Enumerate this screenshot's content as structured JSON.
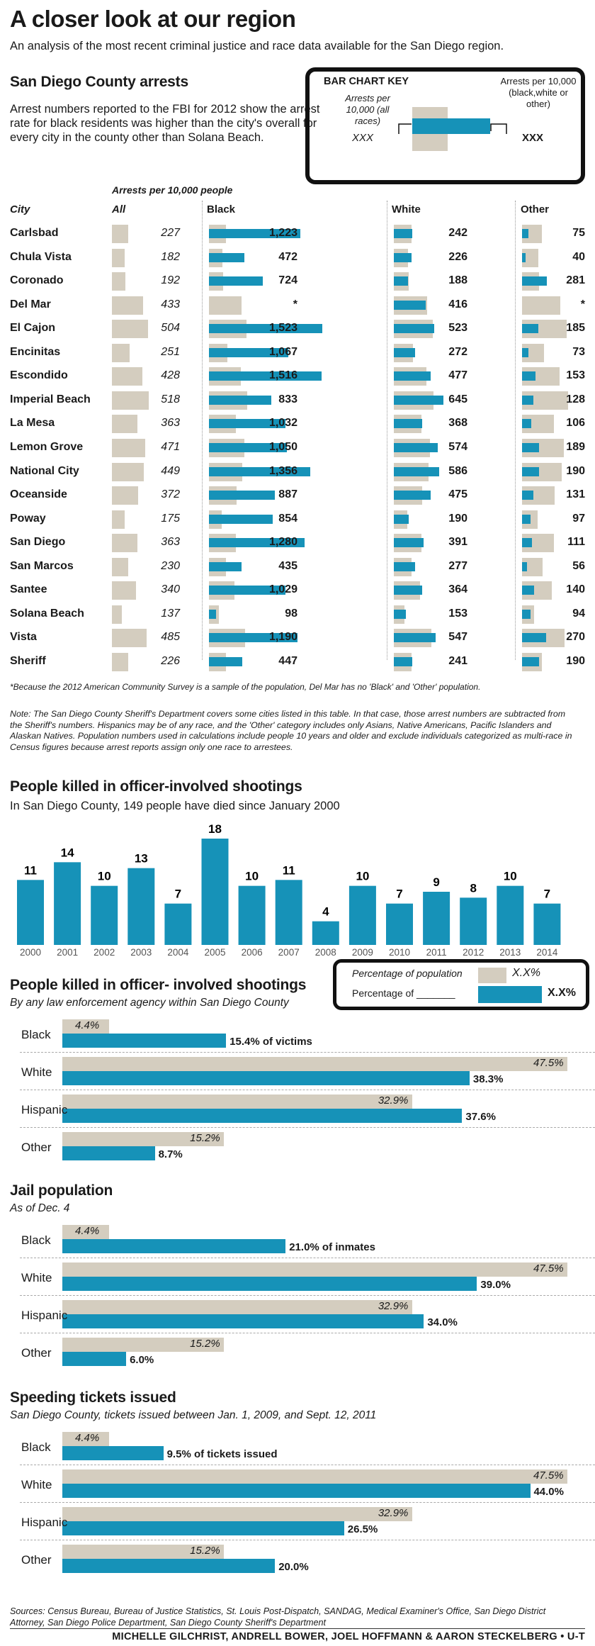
{
  "title": "A closer look at our region",
  "subtitle": "An analysis of the most recent criminal justice and race data available for the San Diego region.",
  "arrests": {
    "heading": "San Diego County arrests",
    "intro": "Arrest numbers reported to the FBI for 2012 show the arrest rate for black residents was higher than the city's overall for every city in the county other than Solana Beach.",
    "key": {
      "title": "BAR CHART KEY",
      "left": "Arrests per 10,000 (all races)",
      "left_val": "XXX",
      "right": "Arrests per 10,000 (black,white or other)",
      "right_val": "XXX"
    },
    "unit_note": "Arrests per 10,000 people",
    "columns": {
      "city": "City",
      "all": "All",
      "black": "Black",
      "white": "White",
      "other": "Other"
    },
    "colors": {
      "all_races": "#d4cdbf",
      "group": "#1692b8"
    },
    "rows": [
      {
        "city": "Carlsbad",
        "all": 227,
        "black": "1,223",
        "white": "242",
        "other": "75"
      },
      {
        "city": "Chula Vista",
        "all": 182,
        "black": "472",
        "white": "226",
        "other": "40"
      },
      {
        "city": "Coronado",
        "all": 192,
        "black": "724",
        "white": "188",
        "other": "281"
      },
      {
        "city": "Del Mar",
        "all": 433,
        "black": "*",
        "white": "416",
        "other": "*"
      },
      {
        "city": "El Cajon",
        "all": 504,
        "black": "1,523",
        "white": "523",
        "other": "185"
      },
      {
        "city": "Encinitas",
        "all": 251,
        "black": "1,067",
        "white": "272",
        "other": "73"
      },
      {
        "city": "Escondido",
        "all": 428,
        "black": "1,516",
        "white": "477",
        "other": "153"
      },
      {
        "city": "Imperial Beach",
        "all": 518,
        "black": "833",
        "white": "645",
        "other": "128"
      },
      {
        "city": "La Mesa",
        "all": 363,
        "black": "1,032",
        "white": "368",
        "other": "106"
      },
      {
        "city": "Lemon Grove",
        "all": 471,
        "black": "1,050",
        "white": "574",
        "other": "189"
      },
      {
        "city": "National City",
        "all": 449,
        "black": "1,356",
        "white": "586",
        "other": "190"
      },
      {
        "city": "Oceanside",
        "all": 372,
        "black": "887",
        "white": "475",
        "other": "131"
      },
      {
        "city": "Poway",
        "all": 175,
        "black": "854",
        "white": "190",
        "other": "97"
      },
      {
        "city": "San Diego",
        "all": 363,
        "black": "1,280",
        "white": "391",
        "other": "111"
      },
      {
        "city": "San Marcos",
        "all": 230,
        "black": "435",
        "white": "277",
        "other": "56"
      },
      {
        "city": "Santee",
        "all": 340,
        "black": "1,029",
        "white": "364",
        "other": "140"
      },
      {
        "city": "Solana Beach",
        "all": 137,
        "black": "98",
        "white": "153",
        "other": "94"
      },
      {
        "city": "Vista",
        "all": 485,
        "black": "1,190",
        "white": "547",
        "other": "270"
      },
      {
        "city": "Sheriff",
        "all": 226,
        "black": "447",
        "white": "241",
        "other": "190"
      }
    ],
    "footnote": "*Because the 2012 American Community Survey is a sample of the population, Del Mar has no 'Black' and 'Other' population.",
    "note": "Note: The San Diego County Sheriff's Department covers some cities listed in this table. In that case, those arrest numbers are subtracted from the Sheriff's numbers. Hispanics may be of any race, and the 'Other' category includes only Asians, Native Americans, Pacific Islanders and Alaskan Natives. Population numbers used in calculations include people 10 years and older and exclude individuals categorized as multi-race in Census figures because arrest reports assign only one race to arrestees."
  },
  "chart_data": [
    {
      "type": "table",
      "title": "San Diego County arrests",
      "columns": [
        "City",
        "All",
        "Black",
        "White",
        "Other"
      ],
      "rows": [
        [
          "Carlsbad",
          227,
          1223,
          242,
          75
        ],
        [
          "Chula Vista",
          182,
          472,
          226,
          40
        ],
        [
          "Coronado",
          192,
          724,
          188,
          281
        ],
        [
          "Del Mar",
          433,
          null,
          416,
          null
        ],
        [
          "El Cajon",
          504,
          1523,
          523,
          185
        ],
        [
          "Encinitas",
          251,
          1067,
          272,
          73
        ],
        [
          "Escondido",
          428,
          1516,
          477,
          153
        ],
        [
          "Imperial Beach",
          518,
          833,
          645,
          128
        ],
        [
          "La Mesa",
          363,
          1032,
          368,
          106
        ],
        [
          "Lemon Grove",
          471,
          1050,
          574,
          189
        ],
        [
          "National City",
          449,
          1356,
          586,
          190
        ],
        [
          "Oceanside",
          372,
          887,
          475,
          131
        ],
        [
          "Poway",
          175,
          854,
          190,
          97
        ],
        [
          "San Diego",
          363,
          1280,
          391,
          111
        ],
        [
          "San Marcos",
          230,
          435,
          277,
          56
        ],
        [
          "Santee",
          340,
          1029,
          364,
          140
        ],
        [
          "Solana Beach",
          137,
          98,
          153,
          94
        ],
        [
          "Vista",
          485,
          1190,
          547,
          270
        ],
        [
          "Sheriff",
          226,
          447,
          241,
          190
        ]
      ]
    },
    {
      "type": "bar",
      "title": "People killed in officer-involved shootings",
      "subtitle": "In San Diego County, 149 people have died since January 2000",
      "categories": [
        "2000",
        "2001",
        "2002",
        "2003",
        "2004",
        "2005",
        "2006",
        "2007",
        "2008",
        "2009",
        "2010",
        "2011",
        "2012",
        "2013",
        "2014"
      ],
      "values": [
        11,
        14,
        10,
        13,
        7,
        18,
        10,
        11,
        4,
        10,
        7,
        9,
        8,
        10,
        7
      ],
      "color": "#1692b8"
    },
    {
      "type": "bar",
      "title": "People killed in officer- involved shootings",
      "subtitle": "By any law enforcement agency within San Diego County",
      "categories": [
        "Black",
        "White",
        "Hispanic",
        "Other"
      ],
      "series": [
        {
          "name": "Percentage of population",
          "values": [
            4.4,
            47.5,
            32.9,
            15.2
          ]
        },
        {
          "name": "Percentage of _______",
          "values": [
            15.4,
            38.3,
            37.6,
            8.7
          ]
        }
      ],
      "annotation": "of victims"
    },
    {
      "type": "bar",
      "title": "Jail population",
      "subtitle": "As of Dec. 4",
      "categories": [
        "Black",
        "White",
        "Hispanic",
        "Other"
      ],
      "series": [
        {
          "name": "Percentage of population",
          "values": [
            4.4,
            47.5,
            32.9,
            15.2
          ]
        },
        {
          "name": "Percentage of _______",
          "values": [
            21.0,
            39.0,
            34.0,
            6.0
          ]
        }
      ],
      "annotation": "of inmates"
    },
    {
      "type": "bar",
      "title": "Speeding tickets issued",
      "subtitle": "San Diego County, tickets issued between Jan. 1, 2009, and Sept. 12, 2011",
      "categories": [
        "Black",
        "White",
        "Hispanic",
        "Other"
      ],
      "series": [
        {
          "name": "Percentage of population",
          "values": [
            4.4,
            47.5,
            32.9,
            15.2
          ]
        },
        {
          "name": "Percentage of _______",
          "values": [
            9.5,
            44.0,
            26.5,
            20.0
          ]
        }
      ],
      "annotation": "of tickets issued"
    }
  ],
  "shootings_yearly": {
    "heading": "People killed in officer-involved shootings",
    "sub": "In San Diego County, 149 people have died since January 2000"
  },
  "legend2": {
    "pop_label": "Percentage of population",
    "pct_label": "Percentage of _______",
    "pop_val": "X.X%",
    "pct_val": "X.X%"
  },
  "pct_sections": [
    {
      "heading": "People killed in officer- involved shootings",
      "sub": "By any law enforcement agency within San Diego County",
      "rows": [
        {
          "race": "Black",
          "pop": "4.4%",
          "val": "15.4% of victims"
        },
        {
          "race": "White",
          "pop": "47.5%",
          "val": "38.3%"
        },
        {
          "race": "Hispanic",
          "pop": "32.9%",
          "val": "37.6%"
        },
        {
          "race": "Other",
          "pop": "15.2%",
          "val": "8.7%"
        }
      ]
    },
    {
      "heading": "Jail population",
      "sub": "As of Dec. 4",
      "rows": [
        {
          "race": "Black",
          "pop": "4.4%",
          "val": "21.0% of inmates"
        },
        {
          "race": "White",
          "pop": "47.5%",
          "val": "39.0%"
        },
        {
          "race": "Hispanic",
          "pop": "32.9%",
          "val": "34.0%"
        },
        {
          "race": "Other",
          "pop": "15.2%",
          "val": "6.0%"
        }
      ]
    },
    {
      "heading": "Speeding tickets issued",
      "sub": "San Diego County, tickets issued between Jan. 1, 2009, and Sept. 12, 2011",
      "rows": [
        {
          "race": "Black",
          "pop": "4.4%",
          "val": "9.5% of tickets issued"
        },
        {
          "race": "White",
          "pop": "47.5%",
          "val": "44.0%"
        },
        {
          "race": "Hispanic",
          "pop": "32.9%",
          "val": "26.5%"
        },
        {
          "race": "Other",
          "pop": "15.2%",
          "val": "20.0%"
        }
      ]
    }
  ],
  "sources": "Sources: Census Bureau, Bureau of Justice Statistics, St. Louis Post-Dispatch, SANDAG, Medical Examiner's Office, San Diego District Attorney, San Diego Police Department, San Diego County Sheriff's Department",
  "credits": "MICHELLE GILCHRIST, ANDRELL BOWER, JOEL HOFFMANN & AARON STECKELBERG • U-T"
}
